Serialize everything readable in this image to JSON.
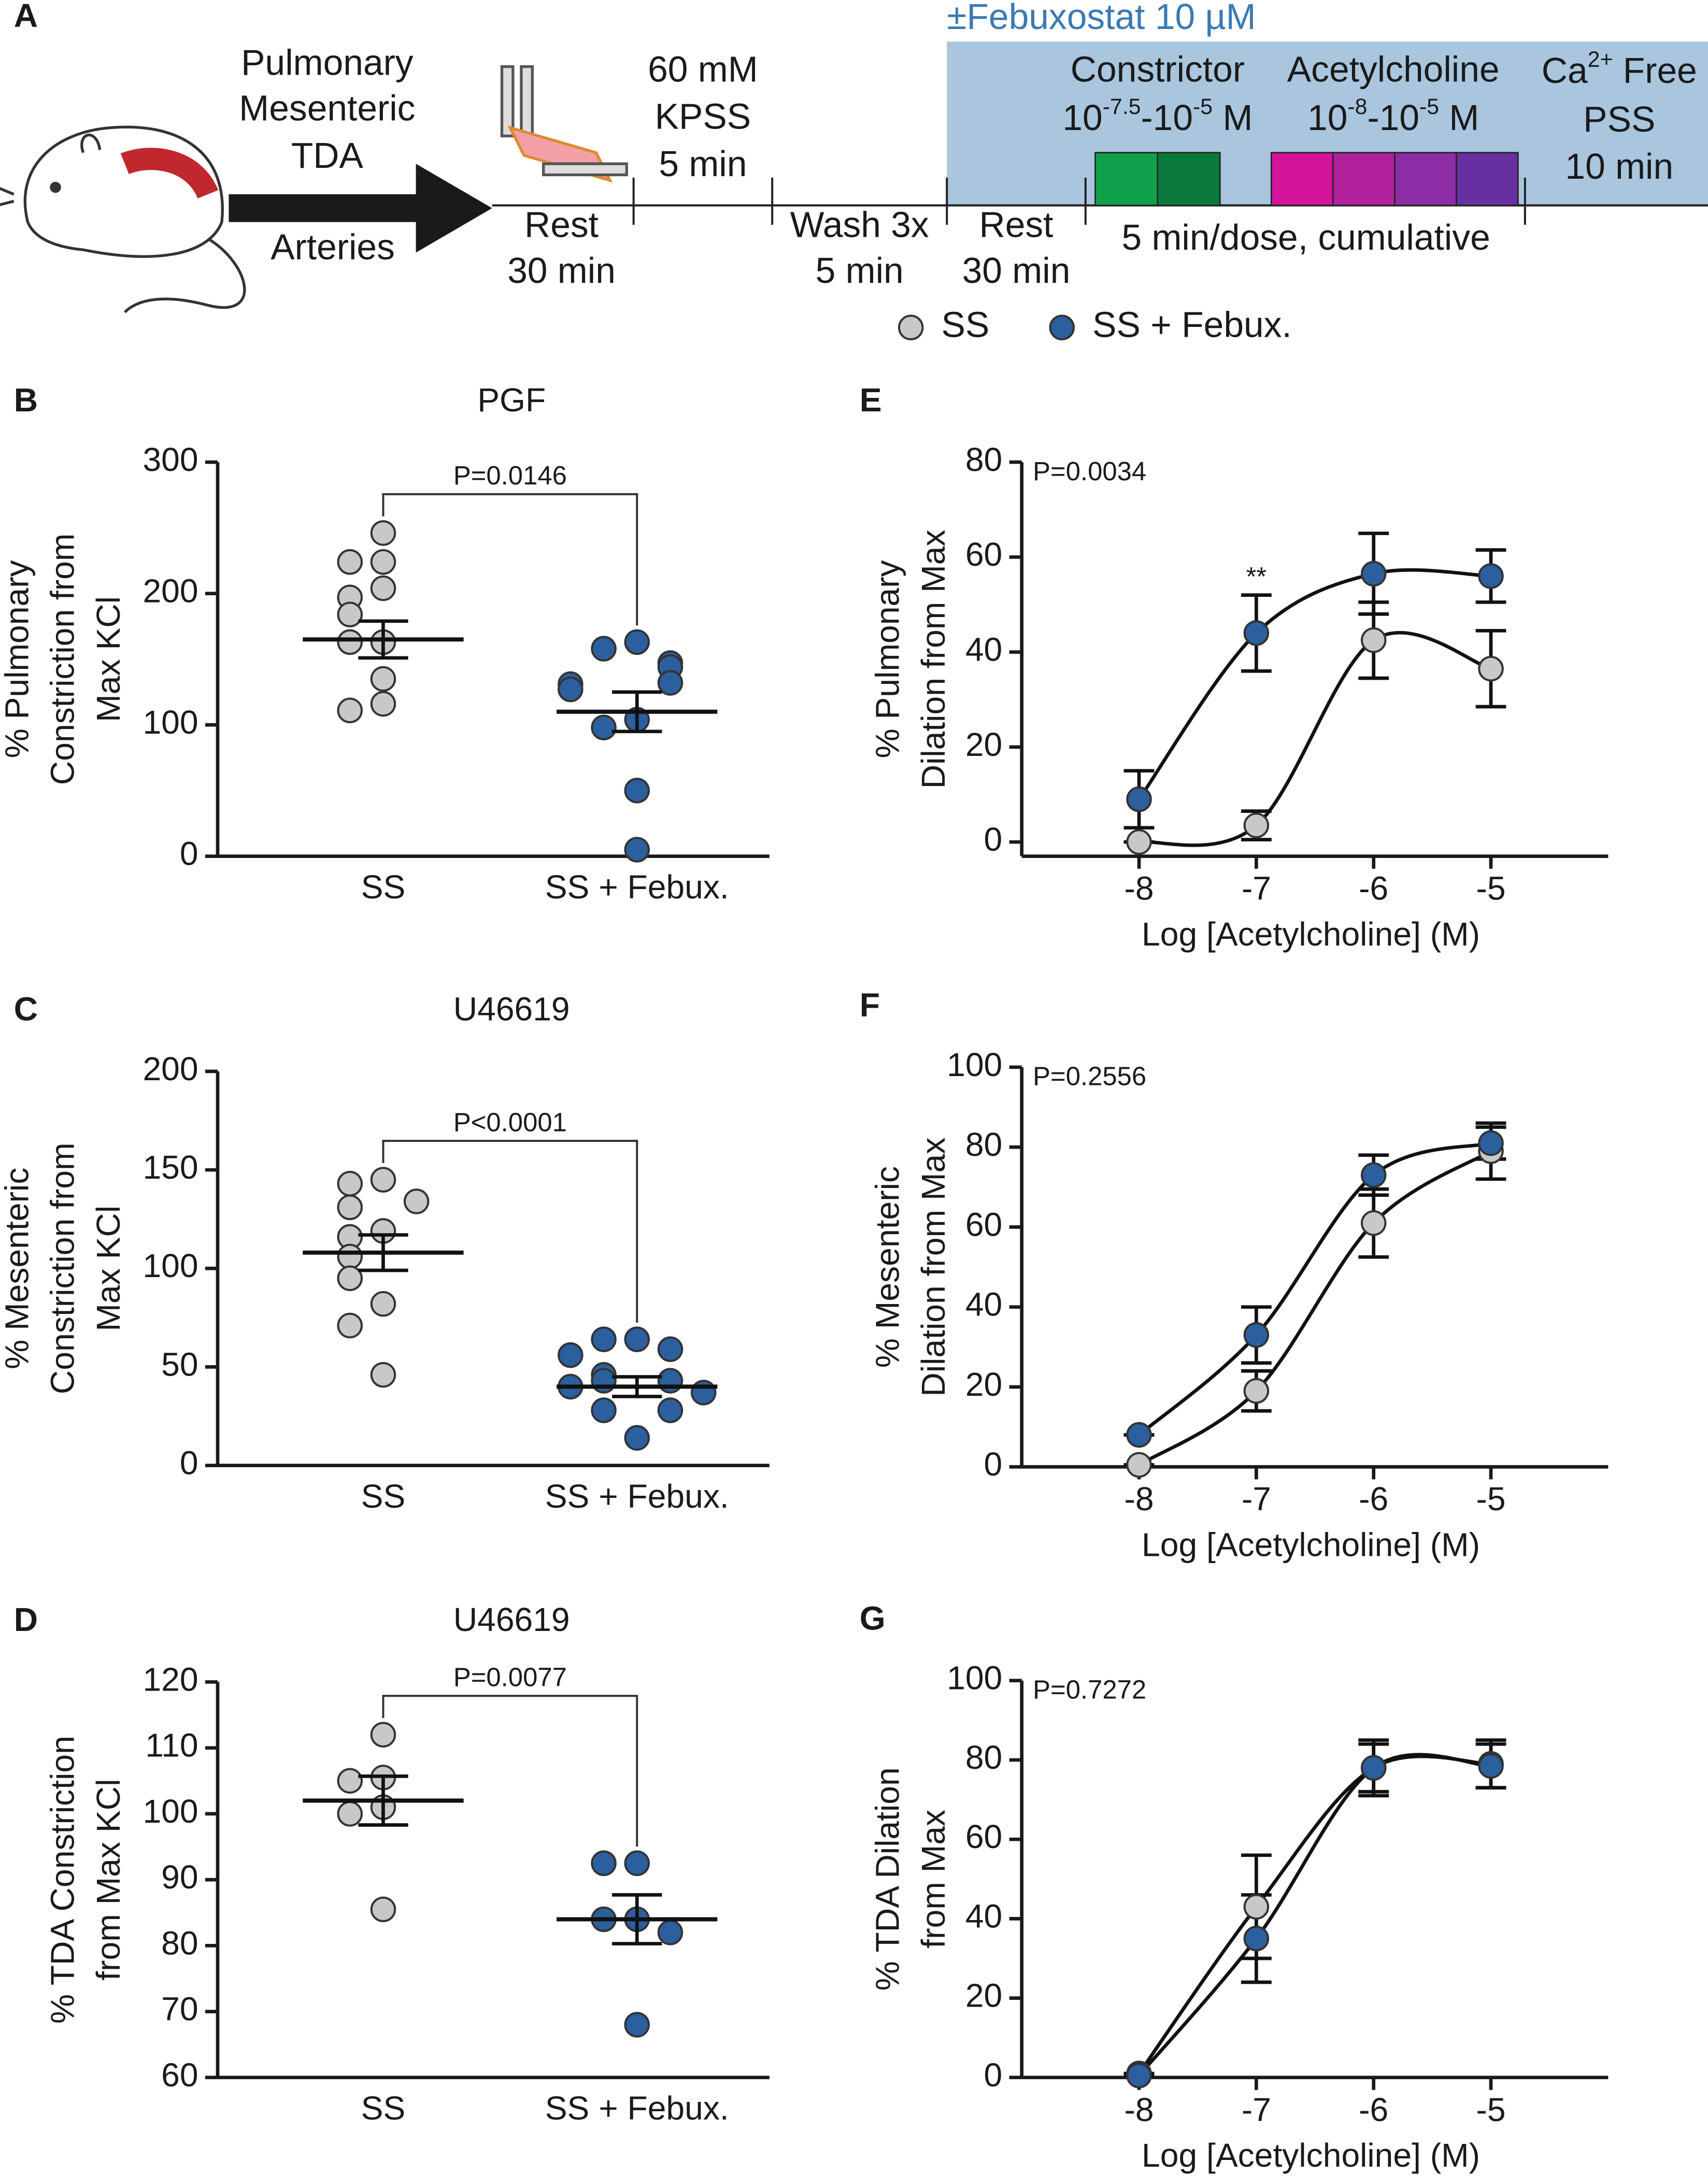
{
  "protocol": {
    "panel": "A",
    "treatment": "±Febuxostat 10 µM",
    "arteries": [
      "Pulmonary",
      "Mesenteric",
      "TDA"
    ],
    "arteries_label": "Arteries",
    "rest1": [
      "Rest",
      "30 min"
    ],
    "kpss": [
      "60 mM",
      "KPSS",
      "5 min"
    ],
    "wash": [
      "Wash 3x",
      "5 min"
    ],
    "rest2": [
      "Rest",
      "30 min"
    ],
    "constrictor": {
      "name": "Constrictor",
      "range": [
        {
          "text": "10"
        },
        {
          "text": "-7.5",
          "sup": true
        },
        {
          "text": "-10"
        },
        {
          "text": "-5",
          "sup": true
        },
        {
          "text": " M"
        }
      ]
    },
    "acetylcholine": {
      "name": "Acetylcholine",
      "range": [
        {
          "text": "10"
        },
        {
          "text": "-8",
          "sup": true
        },
        {
          "text": "-10"
        },
        {
          "text": "-5",
          "sup": true
        },
        {
          "text": " M"
        }
      ]
    },
    "ca_free": {
      "name": [
        {
          "text": "Ca"
        },
        {
          "text": "2+",
          "sup": true
        },
        {
          "text": " Free"
        }
      ],
      "lines": [
        "PSS",
        "10 min"
      ]
    },
    "dosing": "5 min/dose, cumulative"
  },
  "chart_data": [
    {
      "type": "dotplot",
      "panel": "B",
      "title": "PGF",
      "ylabel": [
        "% Pulmonary",
        "Constriction from",
        "Max KCl"
      ],
      "ylim": [
        0,
        300
      ],
      "yticks": [
        0,
        100,
        200,
        300
      ],
      "annotation": "P=0.0146",
      "groups": [
        {
          "name": "SS",
          "color": "#c8c8c8",
          "values": [
            246,
            224,
            224,
            204,
            197,
            184,
            163,
            163,
            135,
            116,
            111
          ],
          "mean": 165,
          "sem": 14
        },
        {
          "name": "SS + Febux.",
          "color": "#2b5f9e",
          "values": [
            163,
            158,
            147,
            144,
            132,
            131,
            127,
            104,
            98,
            50,
            5
          ],
          "mean": 110,
          "sem": 15
        }
      ]
    },
    {
      "type": "dotplot",
      "panel": "C",
      "title": "U46619",
      "ylabel": [
        "% Mesenteric",
        "Constriction from",
        "Max KCl"
      ],
      "ylim": [
        0,
        200
      ],
      "yticks": [
        0,
        50,
        100,
        150,
        200
      ],
      "annotation": "P<0.0001",
      "groups": [
        {
          "name": "SS",
          "color": "#c8c8c8",
          "values": [
            145,
            143,
            134,
            131,
            119,
            116,
            106,
            95,
            82,
            71,
            46
          ],
          "mean": 108,
          "sem": 9
        },
        {
          "name": "SS + Febux.",
          "color": "#2b5f9e",
          "values": [
            64,
            64,
            59,
            56,
            46,
            43,
            43,
            40,
            37,
            28,
            28,
            14
          ],
          "mean": 40,
          "sem": 5
        }
      ]
    },
    {
      "type": "dotplot",
      "panel": "D",
      "title": "U46619",
      "ylabel": [
        "% TDA Constriction",
        "from Max KCl"
      ],
      "ylim": [
        60,
        120
      ],
      "yticks": [
        60,
        70,
        80,
        90,
        100,
        110,
        120
      ],
      "annotation": "P=0.0077",
      "groups": [
        {
          "name": "SS",
          "color": "#c8c8c8",
          "values": [
            112,
            105.5,
            105,
            101,
            100,
            85.5
          ],
          "mean": 102,
          "sem": 3.7
        },
        {
          "name": "SS + Febux.",
          "color": "#2b5f9e",
          "values": [
            92.5,
            92.5,
            84,
            84,
            82,
            68
          ],
          "mean": 84,
          "sem": 3.7
        }
      ]
    },
    {
      "type": "line",
      "panel": "E",
      "ylabel": [
        "% Pulmonary",
        "Dilation from Max"
      ],
      "xlabel": "Log [Acetylcholine] (M)",
      "x": [
        -8,
        -7,
        -6,
        -5
      ],
      "xlim": [
        -9,
        -4
      ],
      "xticks": [
        -8,
        -7,
        -6,
        -5
      ],
      "ylim": [
        -3,
        80
      ],
      "yticks": [
        0,
        20,
        40,
        60,
        80
      ],
      "annotation": "P=0.0034",
      "significance": [
        null,
        "**",
        null,
        null
      ],
      "series": [
        {
          "name": "SS",
          "color": "#c8c8c8",
          "values": [
            0,
            3.5,
            42.5,
            36.5
          ],
          "errors": [
            0,
            3,
            8,
            8
          ]
        },
        {
          "name": "SS + Febux.",
          "color": "#2b5f9e",
          "values": [
            9,
            44,
            56.5,
            56
          ],
          "errors": [
            6,
            8,
            8.5,
            5.5
          ]
        }
      ]
    },
    {
      "type": "line",
      "panel": "F",
      "ylabel": [
        "% Mesenteric",
        "Dilation from Max"
      ],
      "xlabel": "Log [Acetylcholine] (M)",
      "x": [
        -8,
        -7,
        -6,
        -5
      ],
      "xlim": [
        -9,
        -4
      ],
      "xticks": [
        -8,
        -7,
        -6,
        -5
      ],
      "ylim": [
        0,
        100
      ],
      "yticks": [
        0,
        20,
        40,
        60,
        80,
        100
      ],
      "annotation": "P=0.2556",
      "series": [
        {
          "color": "#c8c8c8",
          "values": [
            0.5,
            19,
            61,
            79
          ],
          "errors": [
            0,
            5,
            8.5,
            7
          ]
        },
        {
          "color": "#2b5f9e",
          "values": [
            8,
            33,
            73,
            81
          ],
          "errors": [
            0,
            7,
            5,
            4
          ]
        }
      ]
    },
    {
      "type": "line",
      "panel": "G",
      "ylabel": [
        "% TDA Dilation",
        "from Max"
      ],
      "xlabel": "Log [Acetylcholine] (M)",
      "x": [
        -8,
        -7,
        -6,
        -5
      ],
      "xlim": [
        -9,
        -4
      ],
      "xticks": [
        -8,
        -7,
        -6,
        -5
      ],
      "ylim": [
        0,
        100
      ],
      "yticks": [
        0,
        20,
        40,
        60,
        80,
        100
      ],
      "annotation": "P=0.7272",
      "series": [
        {
          "color": "#c8c8c8",
          "values": [
            1,
            43,
            78,
            79
          ],
          "errors": [
            0,
            13,
            6,
            6
          ]
        },
        {
          "color": "#2b5f9e",
          "values": [
            0.5,
            35,
            78,
            78.5
          ],
          "errors": [
            0,
            11,
            7,
            5.5
          ]
        }
      ]
    }
  ]
}
